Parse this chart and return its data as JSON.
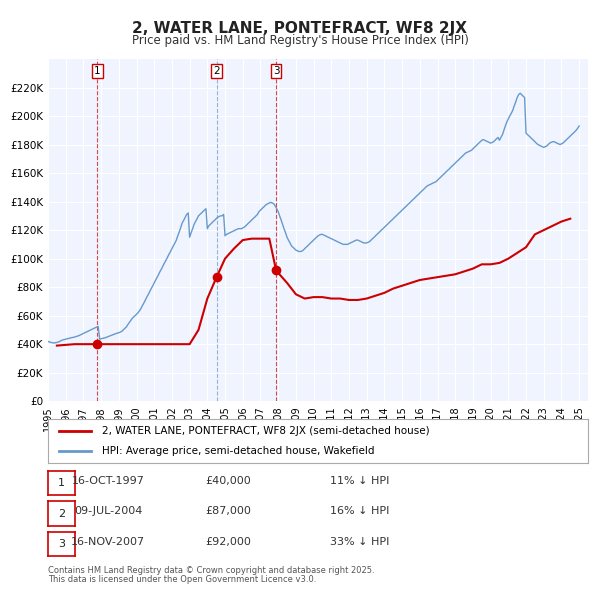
{
  "title": "2, WATER LANE, PONTEFRACT, WF8 2JX",
  "subtitle": "Price paid vs. HM Land Registry's House Price Index (HPI)",
  "title_fontsize": 11,
  "subtitle_fontsize": 9,
  "background_color": "#ffffff",
  "plot_bg_color": "#f0f4ff",
  "grid_color": "#ffffff",
  "red_color": "#cc0000",
  "blue_color": "#6699cc",
  "ylabel": "",
  "ylim": [
    0,
    240000
  ],
  "yticks": [
    0,
    20000,
    40000,
    60000,
    80000,
    100000,
    120000,
    140000,
    160000,
    180000,
    200000,
    220000
  ],
  "ytick_labels": [
    "£0",
    "£20K",
    "£40K",
    "£60K",
    "£80K",
    "£100K",
    "£120K",
    "£140K",
    "£160K",
    "£180K",
    "£200K",
    "£220K"
  ],
  "xmin": 1995.0,
  "xmax": 2025.5,
  "legend_label_red": "2, WATER LANE, PONTEFRACT, WF8 2JX (semi-detached house)",
  "legend_label_blue": "HPI: Average price, semi-detached house, Wakefield",
  "transactions": [
    {
      "num": 1,
      "date_str": "16-OCT-1997",
      "date_x": 1997.79,
      "price": 40000,
      "pct": "11%",
      "label": "1"
    },
    {
      "num": 2,
      "date_str": "09-JUL-2004",
      "date_x": 2004.52,
      "price": 87000,
      "pct": "16%",
      "label": "2"
    },
    {
      "num": 3,
      "date_str": "16-NOV-2007",
      "date_x": 2007.88,
      "price": 92000,
      "pct": "33%",
      "label": "3"
    }
  ],
  "footer_line1": "Contains HM Land Registry data © Crown copyright and database right 2025.",
  "footer_line2": "This data is licensed under the Open Government Licence v3.0.",
  "hpi_data": {
    "x": [
      1995.0,
      1995.08,
      1995.17,
      1995.25,
      1995.33,
      1995.42,
      1995.5,
      1995.58,
      1995.67,
      1995.75,
      1995.83,
      1995.92,
      1996.0,
      1996.08,
      1996.17,
      1996.25,
      1996.33,
      1996.42,
      1996.5,
      1996.58,
      1996.67,
      1996.75,
      1996.83,
      1996.92,
      1997.0,
      1997.08,
      1997.17,
      1997.25,
      1997.33,
      1997.42,
      1997.5,
      1997.58,
      1997.67,
      1997.75,
      1997.83,
      1997.92,
      1998.0,
      1998.08,
      1998.17,
      1998.25,
      1998.33,
      1998.42,
      1998.5,
      1998.58,
      1998.67,
      1998.75,
      1998.83,
      1998.92,
      1999.0,
      1999.08,
      1999.17,
      1999.25,
      1999.33,
      1999.42,
      1999.5,
      1999.58,
      1999.67,
      1999.75,
      1999.83,
      1999.92,
      2000.0,
      2000.08,
      2000.17,
      2000.25,
      2000.33,
      2000.42,
      2000.5,
      2000.58,
      2000.67,
      2000.75,
      2000.83,
      2000.92,
      2001.0,
      2001.08,
      2001.17,
      2001.25,
      2001.33,
      2001.42,
      2001.5,
      2001.58,
      2001.67,
      2001.75,
      2001.83,
      2001.92,
      2002.0,
      2002.08,
      2002.17,
      2002.25,
      2002.33,
      2002.42,
      2002.5,
      2002.58,
      2002.67,
      2002.75,
      2002.83,
      2002.92,
      2003.0,
      2003.08,
      2003.17,
      2003.25,
      2003.33,
      2003.42,
      2003.5,
      2003.58,
      2003.67,
      2003.75,
      2003.83,
      2003.92,
      2004.0,
      2004.08,
      2004.17,
      2004.25,
      2004.33,
      2004.42,
      2004.5,
      2004.58,
      2004.67,
      2004.75,
      2004.83,
      2004.92,
      2005.0,
      2005.08,
      2005.17,
      2005.25,
      2005.33,
      2005.42,
      2005.5,
      2005.58,
      2005.67,
      2005.75,
      2005.83,
      2005.92,
      2006.0,
      2006.08,
      2006.17,
      2006.25,
      2006.33,
      2006.42,
      2006.5,
      2006.58,
      2006.67,
      2006.75,
      2006.83,
      2006.92,
      2007.0,
      2007.08,
      2007.17,
      2007.25,
      2007.33,
      2007.42,
      2007.5,
      2007.58,
      2007.67,
      2007.75,
      2007.83,
      2007.92,
      2008.0,
      2008.08,
      2008.17,
      2008.25,
      2008.33,
      2008.42,
      2008.5,
      2008.58,
      2008.67,
      2008.75,
      2008.83,
      2008.92,
      2009.0,
      2009.08,
      2009.17,
      2009.25,
      2009.33,
      2009.42,
      2009.5,
      2009.58,
      2009.67,
      2009.75,
      2009.83,
      2009.92,
      2010.0,
      2010.08,
      2010.17,
      2010.25,
      2010.33,
      2010.42,
      2010.5,
      2010.58,
      2010.67,
      2010.75,
      2010.83,
      2010.92,
      2011.0,
      2011.08,
      2011.17,
      2011.25,
      2011.33,
      2011.42,
      2011.5,
      2011.58,
      2011.67,
      2011.75,
      2011.83,
      2011.92,
      2012.0,
      2012.08,
      2012.17,
      2012.25,
      2012.33,
      2012.42,
      2012.5,
      2012.58,
      2012.67,
      2012.75,
      2012.83,
      2012.92,
      2013.0,
      2013.08,
      2013.17,
      2013.25,
      2013.33,
      2013.42,
      2013.5,
      2013.58,
      2013.67,
      2013.75,
      2013.83,
      2013.92,
      2014.0,
      2014.08,
      2014.17,
      2014.25,
      2014.33,
      2014.42,
      2014.5,
      2014.58,
      2014.67,
      2014.75,
      2014.83,
      2014.92,
      2015.0,
      2015.08,
      2015.17,
      2015.25,
      2015.33,
      2015.42,
      2015.5,
      2015.58,
      2015.67,
      2015.75,
      2015.83,
      2015.92,
      2016.0,
      2016.08,
      2016.17,
      2016.25,
      2016.33,
      2016.42,
      2016.5,
      2016.58,
      2016.67,
      2016.75,
      2016.83,
      2016.92,
      2017.0,
      2017.08,
      2017.17,
      2017.25,
      2017.33,
      2017.42,
      2017.5,
      2017.58,
      2017.67,
      2017.75,
      2017.83,
      2017.92,
      2018.0,
      2018.08,
      2018.17,
      2018.25,
      2018.33,
      2018.42,
      2018.5,
      2018.58,
      2018.67,
      2018.75,
      2018.83,
      2018.92,
      2019.0,
      2019.08,
      2019.17,
      2019.25,
      2019.33,
      2019.42,
      2019.5,
      2019.58,
      2019.67,
      2019.75,
      2019.83,
      2019.92,
      2020.0,
      2020.08,
      2020.17,
      2020.25,
      2020.33,
      2020.42,
      2020.5,
      2020.58,
      2020.67,
      2020.75,
      2020.83,
      2020.92,
      2021.0,
      2021.08,
      2021.17,
      2021.25,
      2021.33,
      2021.42,
      2021.5,
      2021.58,
      2021.67,
      2021.75,
      2021.83,
      2021.92,
      2022.0,
      2022.08,
      2022.17,
      2022.25,
      2022.33,
      2022.42,
      2022.5,
      2022.58,
      2022.67,
      2022.75,
      2022.83,
      2022.92,
      2023.0,
      2023.08,
      2023.17,
      2023.25,
      2023.33,
      2023.42,
      2023.5,
      2023.58,
      2023.67,
      2023.75,
      2023.83,
      2023.92,
      2024.0,
      2024.08,
      2024.17,
      2024.25,
      2024.33,
      2024.42,
      2024.5,
      2024.58,
      2024.67,
      2024.75,
      2024.83,
      2024.92,
      2025.0
    ],
    "y": [
      42000,
      41500,
      41200,
      41000,
      40800,
      41000,
      41200,
      41500,
      42000,
      42500,
      43000,
      43200,
      43500,
      43800,
      44000,
      44300,
      44500,
      44700,
      45000,
      45300,
      45600,
      46000,
      46500,
      47000,
      47500,
      48000,
      48500,
      49000,
      49500,
      50000,
      50500,
      51000,
      51500,
      52000,
      52500,
      43500,
      43800,
      44000,
      44300,
      44600,
      45000,
      45400,
      45800,
      46200,
      46600,
      47000,
      47400,
      47800,
      48000,
      48500,
      49000,
      50000,
      51000,
      52000,
      53500,
      55000,
      56500,
      58000,
      59000,
      60000,
      61000,
      62000,
      63500,
      65000,
      67000,
      69000,
      71000,
      73000,
      75000,
      77000,
      79000,
      81000,
      83000,
      85000,
      87000,
      89000,
      91000,
      93000,
      95000,
      97000,
      99000,
      101000,
      103000,
      105000,
      107000,
      109000,
      111000,
      113000,
      116000,
      119000,
      122000,
      125000,
      127000,
      129000,
      131000,
      132000,
      115000,
      118000,
      121000,
      124000,
      126000,
      128000,
      130000,
      131000,
      132000,
      133000,
      134000,
      135000,
      121000,
      123000,
      124000,
      125000,
      126000,
      127000,
      128000,
      129000,
      129500,
      130000,
      130000,
      131000,
      116000,
      117000,
      117500,
      118000,
      118500,
      119000,
      119500,
      120000,
      120500,
      121000,
      121000,
      121000,
      121500,
      122000,
      123000,
      124000,
      125000,
      126000,
      127000,
      128000,
      129000,
      130000,
      131000,
      133000,
      134000,
      135000,
      136000,
      137000,
      138000,
      138500,
      139000,
      139500,
      139000,
      138500,
      137000,
      135000,
      133000,
      130000,
      127000,
      124000,
      121000,
      118000,
      115000,
      113000,
      111000,
      109000,
      108000,
      107000,
      106000,
      105500,
      105000,
      105000,
      105200,
      106000,
      107000,
      108000,
      109000,
      110000,
      111000,
      112000,
      113000,
      114000,
      115000,
      116000,
      116500,
      117000,
      117000,
      116500,
      116000,
      115500,
      115000,
      114500,
      114000,
      113500,
      113000,
      112500,
      112000,
      111500,
      111000,
      110500,
      110000,
      110000,
      110000,
      110000,
      110500,
      111000,
      111500,
      112000,
      112500,
      113000,
      113000,
      112500,
      112000,
      111500,
      111000,
      111000,
      111000,
      111500,
      112000,
      113000,
      114000,
      115000,
      116000,
      117000,
      118000,
      119000,
      120000,
      121000,
      122000,
      123000,
      124000,
      125000,
      126000,
      127000,
      128000,
      129000,
      130000,
      131000,
      132000,
      133000,
      134000,
      135000,
      136000,
      137000,
      138000,
      139000,
      140000,
      141000,
      142000,
      143000,
      144000,
      145000,
      146000,
      147000,
      148000,
      149000,
      150000,
      151000,
      151500,
      152000,
      152500,
      153000,
      153500,
      154000,
      155000,
      156000,
      157000,
      158000,
      159000,
      160000,
      161000,
      162000,
      163000,
      164000,
      165000,
      166000,
      167000,
      168000,
      169000,
      170000,
      171000,
      172000,
      173000,
      174000,
      174500,
      175000,
      175500,
      176000,
      177000,
      178000,
      179000,
      180000,
      181000,
      182000,
      183000,
      183500,
      183000,
      182500,
      182000,
      181500,
      181000,
      181500,
      182000,
      183000,
      184000,
      185000,
      183000,
      185000,
      187000,
      190000,
      193000,
      196000,
      198000,
      200000,
      202000,
      204000,
      207000,
      210000,
      213000,
      215000,
      216000,
      215000,
      214000,
      213000,
      188000,
      187000,
      186000,
      185000,
      184000,
      183000,
      182000,
      181000,
      180000,
      179500,
      179000,
      178500,
      178000,
      178500,
      179000,
      180000,
      181000,
      181500,
      182000,
      182000,
      181500,
      181000,
      180500,
      180000,
      180500,
      181000,
      182000,
      183000,
      184000,
      185000,
      186000,
      187000,
      188000,
      189000,
      190000,
      191500,
      193000
    ]
  },
  "price_data": {
    "x": [
      1995.5,
      1996.0,
      1996.5,
      1997.0,
      1997.5,
      1997.79,
      1998.0,
      1998.5,
      1999.0,
      1999.5,
      2000.0,
      2000.5,
      2001.0,
      2001.5,
      2002.0,
      2002.5,
      2003.0,
      2003.5,
      2004.0,
      2004.52,
      2005.0,
      2005.5,
      2006.0,
      2006.5,
      2007.0,
      2007.5,
      2007.88,
      2008.0,
      2008.5,
      2009.0,
      2009.5,
      2010.0,
      2010.5,
      2011.0,
      2011.5,
      2012.0,
      2012.5,
      2013.0,
      2013.5,
      2014.0,
      2014.5,
      2015.0,
      2015.5,
      2016.0,
      2016.5,
      2017.0,
      2017.5,
      2018.0,
      2018.5,
      2019.0,
      2019.5,
      2020.0,
      2020.5,
      2021.0,
      2021.5,
      2022.0,
      2022.5,
      2023.0,
      2023.5,
      2024.0,
      2024.5
    ],
    "y": [
      39000,
      39500,
      40000,
      40000,
      40000,
      40000,
      40000,
      40000,
      40000,
      40000,
      40000,
      40000,
      40000,
      40000,
      40000,
      40000,
      40000,
      50000,
      72000,
      87000,
      100000,
      107000,
      113000,
      114000,
      114000,
      114000,
      92000,
      90000,
      83000,
      75000,
      72000,
      73000,
      73000,
      72000,
      72000,
      71000,
      71000,
      72000,
      74000,
      76000,
      79000,
      81000,
      83000,
      85000,
      86000,
      87000,
      88000,
      89000,
      91000,
      93000,
      96000,
      96000,
      97000,
      100000,
      104000,
      108000,
      117000,
      120000,
      123000,
      126000,
      128000
    ]
  }
}
